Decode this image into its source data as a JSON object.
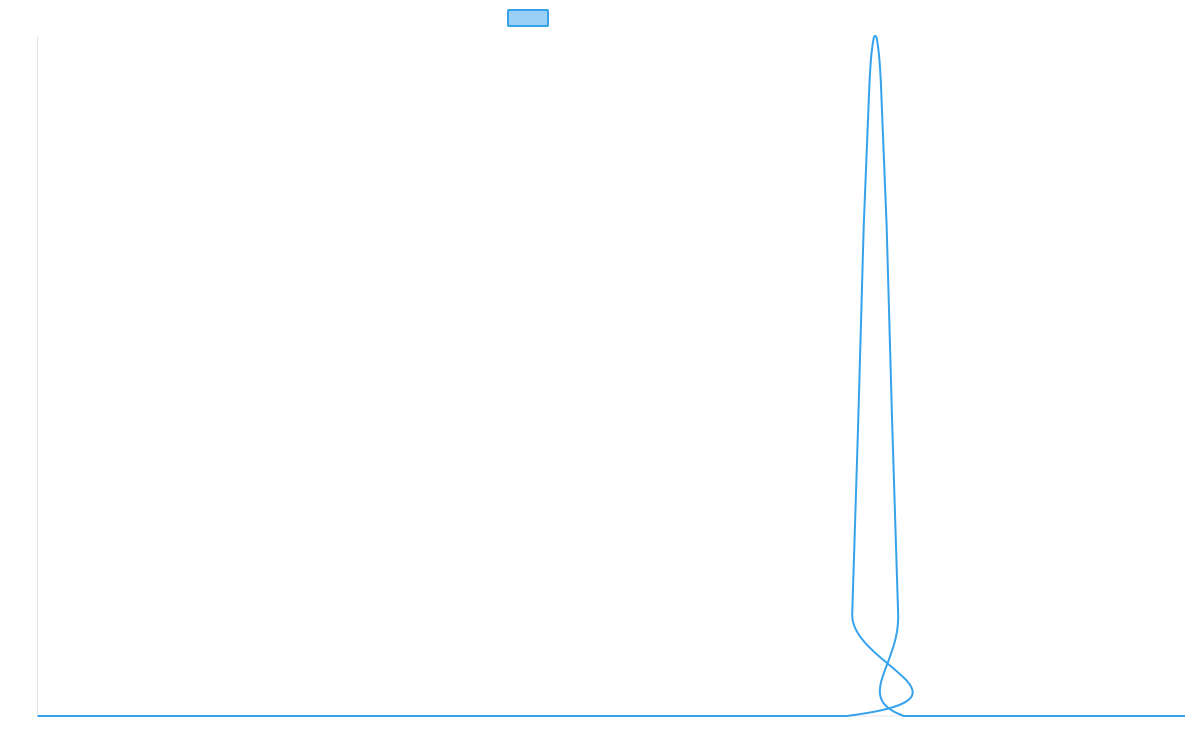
{
  "colors": {
    "series_stroke": "#36A2EB",
    "series_fill": "#9AD0F5",
    "axis": "#E5E5E5",
    "background": "#FFFFFF"
  },
  "chart_data": {
    "type": "line",
    "title": "",
    "xlabel": "",
    "ylabel": "",
    "legend": {
      "position": "top",
      "entries": [
        {
          "name": "",
          "color": "#36A2EB"
        }
      ]
    },
    "grid": false,
    "x_ticks_visible": false,
    "y_ticks_visible": false,
    "xlim": [
      0,
      100
    ],
    "ylim": [
      0,
      1
    ],
    "series": [
      {
        "name": "",
        "x": [
          0,
          70.5,
          71.0,
          71.5,
          72.0,
          72.5,
          72.8,
          73.0,
          73.2,
          73.5,
          74.0,
          74.5,
          75.0,
          75.5,
          100
        ],
        "y": [
          0,
          0,
          0.15,
          0.42,
          0.72,
          0.93,
          0.99,
          1.0,
          0.99,
          0.93,
          0.72,
          0.42,
          0.15,
          0,
          0
        ]
      }
    ]
  }
}
